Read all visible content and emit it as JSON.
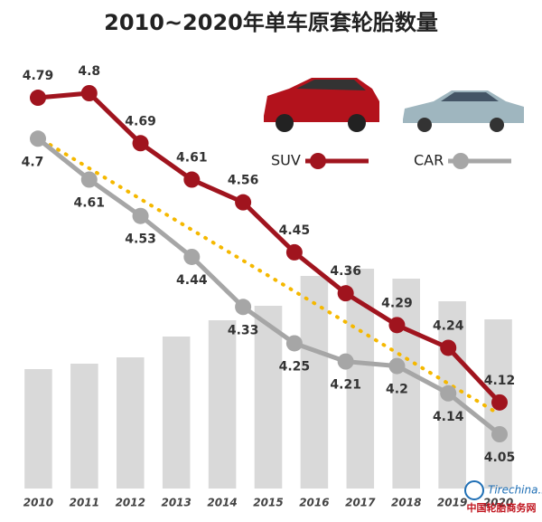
{
  "chart_data": [
    {
      "type": "bar",
      "title": "2010~2020年单车原套轮胎数量",
      "categories": [
        "2010",
        "2011",
        "2012",
        "2013",
        "2014",
        "2015",
        "2016",
        "2017",
        "2018",
        "2019",
        "2020"
      ],
      "values": [
        132,
        138,
        145,
        168,
        186,
        202,
        235,
        243,
        232,
        207,
        187
      ],
      "color": "#d9d9d9"
    },
    {
      "type": "line",
      "series": [
        {
          "name": "SUV",
          "color": "#a0141e",
          "values": [
            4.79,
            4.8,
            4.69,
            4.61,
            4.56,
            4.45,
            4.36,
            4.29,
            4.24,
            4.12
          ]
        },
        {
          "name": "CAR",
          "color": "#a6a6a6",
          "values": [
            4.7,
            4.61,
            4.53,
            4.44,
            4.33,
            4.25,
            4.21,
            4.2,
            4.14,
            4.05
          ]
        }
      ]
    }
  ],
  "logo": {
    "site": "Tirechina.net",
    "name": "中国轮胎商务网"
  }
}
